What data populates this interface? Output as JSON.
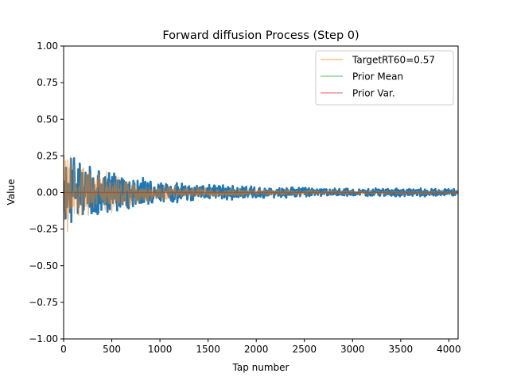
{
  "chart_data": {
    "type": "line",
    "title": "Forward diffusion Process (Step 0)",
    "xlabel": "Tap number",
    "ylabel": "Value",
    "xlim": [
      0,
      4096
    ],
    "ylim": [
      -1.0,
      1.0
    ],
    "xticks": [
      0,
      500,
      1000,
      1500,
      2000,
      2500,
      3000,
      3500,
      4000
    ],
    "yticks": [
      -1.0,
      -0.75,
      -0.5,
      -0.25,
      0.0,
      0.25,
      0.5,
      0.75,
      1.0
    ],
    "ytick_labels": [
      "−1.00",
      "−0.75",
      "−0.50",
      "−0.25",
      "0.00",
      "0.25",
      "0.50",
      "0.75",
      "1.00"
    ],
    "grid": false,
    "legend_position": "top-right",
    "series": [
      {
        "color": "#1f77b4",
        "width": 2.6,
        "alpha": 1.0,
        "kind": "decaying-noise",
        "envelope": [
          [
            0,
            0.34
          ],
          [
            100,
            0.28
          ],
          [
            200,
            0.24
          ],
          [
            300,
            0.2
          ],
          [
            500,
            0.16
          ],
          [
            700,
            0.12
          ],
          [
            1000,
            0.08
          ],
          [
            1500,
            0.06
          ],
          [
            2000,
            0.045
          ],
          [
            2500,
            0.035
          ],
          [
            3000,
            0.03
          ],
          [
            4096,
            0.03
          ]
        ]
      },
      {
        "name": "TargetRT60=0.57",
        "color": "#ff7f0e",
        "width": 1.5,
        "alpha": 0.5,
        "kind": "decaying-noise",
        "envelope": [
          [
            0,
            0.3
          ],
          [
            100,
            0.24
          ],
          [
            200,
            0.2
          ],
          [
            300,
            0.18
          ],
          [
            500,
            0.14
          ],
          [
            700,
            0.1
          ],
          [
            1000,
            0.06
          ],
          [
            1500,
            0.035
          ],
          [
            2000,
            0.025
          ],
          [
            2500,
            0.018
          ],
          [
            3000,
            0.012
          ],
          [
            4096,
            0.008
          ]
        ]
      },
      {
        "name": "Prior Mean",
        "color": "#2ca02c",
        "width": 1.5,
        "alpha": 0.5,
        "kind": "constant",
        "value": 0.0
      },
      {
        "name": "Prior Var.",
        "color": "#d62728",
        "width": 1.5,
        "alpha": 0.5,
        "kind": "constant",
        "value": 0.0
      }
    ]
  }
}
